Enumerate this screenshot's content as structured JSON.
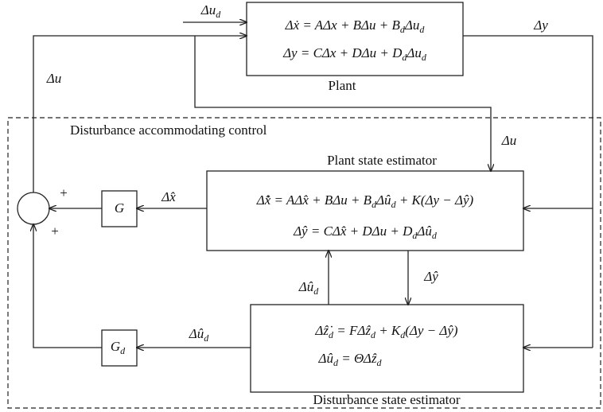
{
  "plant": {
    "input_label": [
      "Δu",
      {
        "sub": "d"
      }
    ],
    "equations": [
      [
        "Δẋ = AΔx + BΔu + B",
        {
          "sub": "d"
        },
        "Δu",
        {
          "sub": "d"
        }
      ],
      [
        "Δy = CΔx + DΔu + D",
        {
          "sub": "d"
        },
        "Δu",
        {
          "sub": "d"
        }
      ]
    ],
    "label": "Plant",
    "output_label": "Δy"
  },
  "feedback_label": "Δu",
  "control_label": "Disturbance accommodating control",
  "estimator_input_label": "Δu",
  "plant_estimator": {
    "title": "Plant state estimator",
    "equations": [
      [
        "Δx̂̇ = AΔx̂ + BΔu + B",
        {
          "sub": "d"
        },
        "Δû",
        {
          "sub": "d"
        },
        " + K(Δy − Δŷ)"
      ],
      [
        "Δŷ = CΔx̂ + DΔu + D",
        {
          "sub": "d"
        },
        "Δû",
        {
          "sub": "d"
        }
      ]
    ],
    "output_label": "Δx̂",
    "disturbance_input_label": [
      "Δû",
      {
        "sub": "d"
      }
    ],
    "output_y_label": "Δŷ"
  },
  "gain_g": "G",
  "sum_signs": [
    "+",
    "+"
  ],
  "gain_gd": [
    "G",
    {
      "sub": "d"
    }
  ],
  "gain_gd_input_label": [
    "Δû",
    {
      "sub": "d"
    }
  ],
  "disturbance_estimator": {
    "title": "Disturbance state estimator",
    "equations": [
      [
        "Δẑ̇",
        {
          "sub": "d"
        },
        " = FΔẑ",
        {
          "sub": "d"
        },
        " + K",
        {
          "sub": "d"
        },
        "(Δy − Δŷ)"
      ],
      [
        "Δû",
        {
          "sub": "d"
        },
        " = ΘΔẑ",
        {
          "sub": "d"
        }
      ]
    ]
  }
}
